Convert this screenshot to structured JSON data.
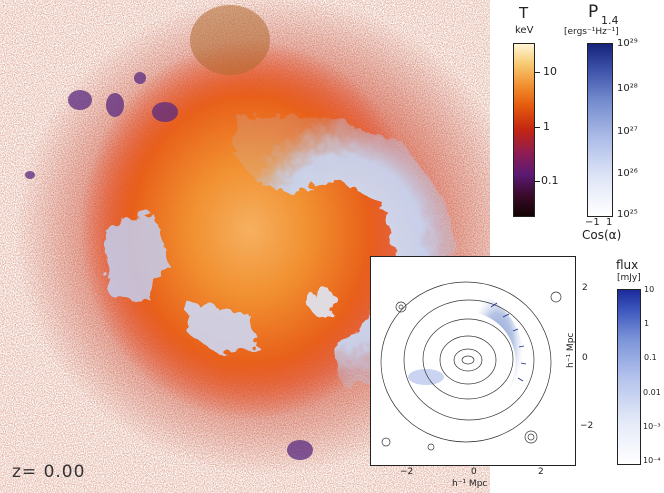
{
  "main": {
    "redshift_label": "z= 0.00"
  },
  "colorbar_temperature": {
    "title": "T",
    "unit": "keV",
    "ticks": [
      "10",
      "1",
      "0.1"
    ]
  },
  "colorbar_radio": {
    "title": "P",
    "subscript": "1.4",
    "unit": "[ergs⁻¹Hz⁻¹]",
    "ticks": [
      "10²⁹",
      "10²⁸",
      "10²⁷",
      "10²⁶",
      "10²⁵"
    ],
    "bottom_left": "−1",
    "bottom_right": "1",
    "axis_label": "Cos(α)"
  },
  "colorbar_flux": {
    "title": "flux",
    "unit": "[mJy]",
    "ticks": [
      "10",
      "1",
      "0.1",
      "0.01",
      "10⁻³",
      "10⁻⁴"
    ]
  },
  "inset": {
    "x_ticks": [
      "−2",
      "0",
      "2"
    ],
    "y_ticks": [
      "2",
      "0",
      "−2"
    ],
    "x_label": "h⁻¹ Mpc",
    "y_label": "h⁻¹ Mpc"
  },
  "colors": {
    "hot_orange": "#f19030",
    "radio_blue": "#3e52aa",
    "background": "#ffffff"
  }
}
